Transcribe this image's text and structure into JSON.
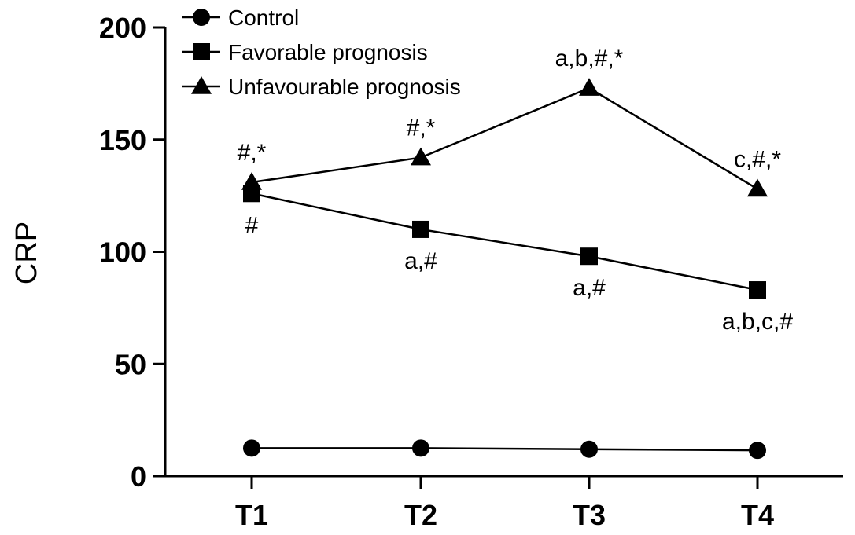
{
  "chart_data": {
    "type": "line",
    "title": "",
    "xlabel": "",
    "ylabel": "CRP",
    "categories": [
      "T1",
      "T2",
      "T3",
      "T4"
    ],
    "ylim": [
      0,
      200
    ],
    "yticks": [
      0,
      50,
      100,
      150,
      200
    ],
    "grid": false,
    "legend_position": "top-left",
    "series": [
      {
        "name": "Control",
        "marker": "circle",
        "values": [
          12.5,
          12.5,
          12,
          11.5
        ],
        "annotations": [
          "",
          "",
          "",
          ""
        ],
        "annotation_side": "above"
      },
      {
        "name": "Favorable prognosis",
        "marker": "square",
        "values": [
          126,
          110,
          98,
          83
        ],
        "annotations": [
          "#",
          "a,#",
          "a,#",
          "a,b,c,#"
        ],
        "annotation_side": "below"
      },
      {
        "name": "Unfavourable prognosis",
        "marker": "triangle",
        "values": [
          131,
          142,
          173,
          128
        ],
        "annotations": [
          "#,*",
          "#,*",
          "a,b,#,*",
          "c,#,*"
        ],
        "annotation_side": "above"
      }
    ]
  }
}
